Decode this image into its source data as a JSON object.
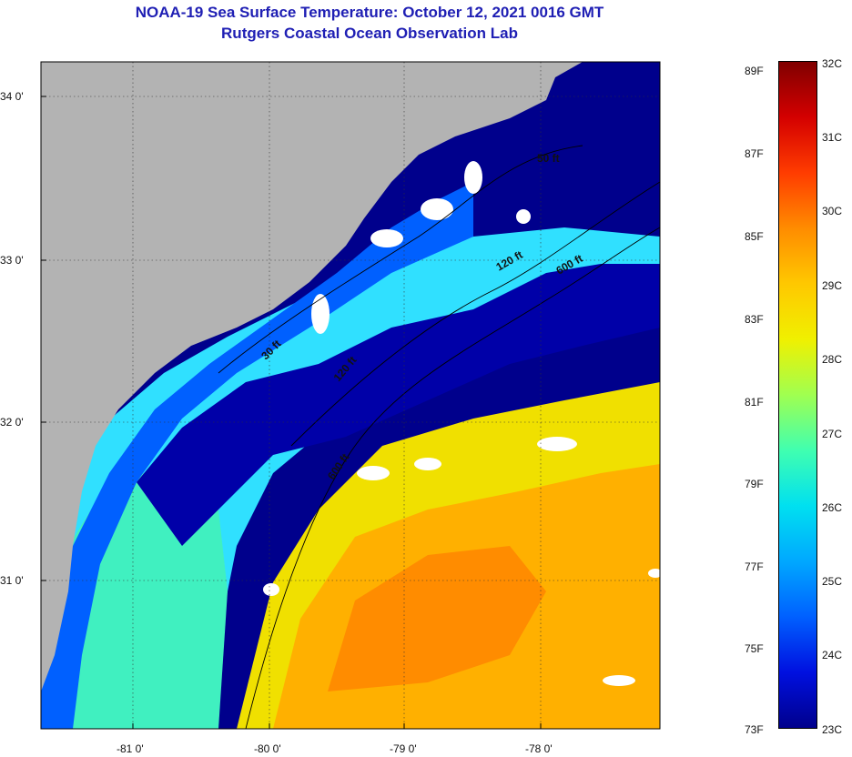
{
  "title": {
    "line1": "NOAA-19 Sea Surface Temperature:  October 12, 2021 0016 GMT",
    "line2": "Rutgers Coastal Ocean Observation Lab"
  },
  "map": {
    "lat_labels": [
      "34 0'",
      "33 0'",
      "32 0'",
      "31 0'"
    ],
    "lon_labels": [
      "-81 0'",
      "-80 0'",
      "-79 0'",
      "-78 0'"
    ],
    "contours": [
      "50 ft",
      "120 ft",
      "600 ft",
      "30 ft",
      "120 ft",
      "600 ft"
    ],
    "colors": {
      "land": "#b3b3b3",
      "cloud": "#ffffff",
      "cold": "#00008c",
      "mid": "#00d2ff",
      "warm": "#ffaa00"
    }
  },
  "colorbar": {
    "fahrenheit": [
      "89F",
      "87F",
      "85F",
      "83F",
      "81F",
      "79F",
      "77F",
      "75F",
      "73F"
    ],
    "celsius": [
      "32C",
      "31C",
      "30C",
      "29C",
      "28C",
      "27C",
      "26C",
      "25C",
      "24C",
      "23C"
    ],
    "gradient": [
      "#800000",
      "#d40000",
      "#ff3c00",
      "#ff8c00",
      "#ffc800",
      "#f0f000",
      "#a0ff50",
      "#40ffb0",
      "#00e0f0",
      "#00a8ff",
      "#0060ff",
      "#0010e0",
      "#00008c"
    ]
  }
}
